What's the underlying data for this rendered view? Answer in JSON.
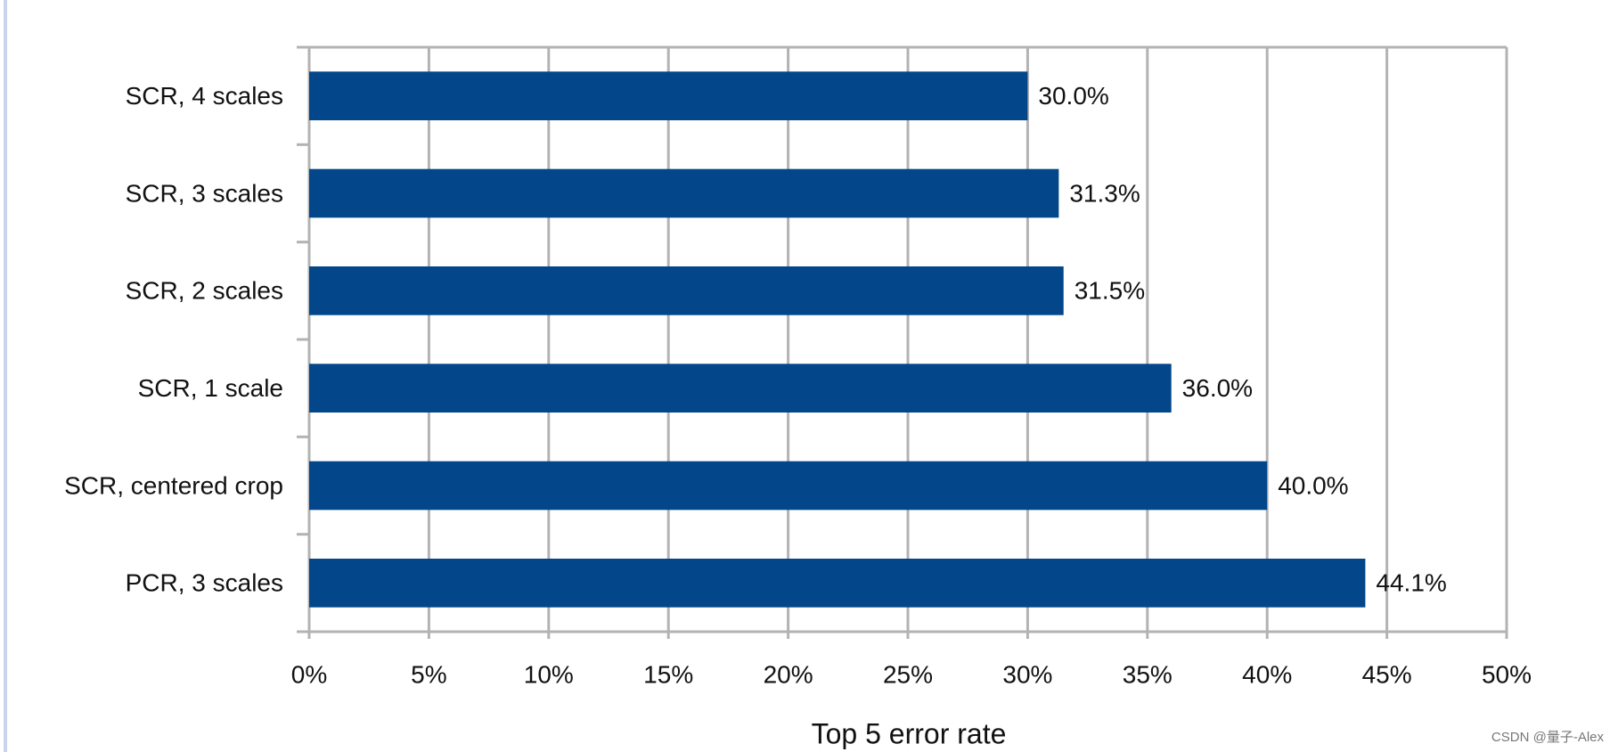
{
  "chart_data": {
    "type": "bar",
    "orientation": "horizontal",
    "categories": [
      "SCR, 4 scales",
      "SCR, 3 scales",
      "SCR, 2 scales",
      "SCR, 1 scale",
      "SCR, centered crop",
      "PCR, 3 scales"
    ],
    "values": [
      30.0,
      31.3,
      31.5,
      36.0,
      40.0,
      44.1
    ],
    "value_labels": [
      "30.0%",
      "31.3%",
      "31.5%",
      "36.0%",
      "40.0%",
      "44.1%"
    ],
    "color": "#03468a",
    "xlabel": "Top 5 error rate",
    "xlim": [
      0,
      50
    ],
    "xticks": [
      {
        "value": 0,
        "label": "0%"
      },
      {
        "value": 5,
        "label": "5%"
      },
      {
        "value": 10,
        "label": "10%"
      },
      {
        "value": 15,
        "label": "15%"
      },
      {
        "value": 20,
        "label": "20%"
      },
      {
        "value": 25,
        "label": "25%"
      },
      {
        "value": 30,
        "label": "30%"
      },
      {
        "value": 35,
        "label": "35%"
      },
      {
        "value": 40,
        "label": "40%"
      },
      {
        "value": 45,
        "label": "45%"
      },
      {
        "value": 50,
        "label": "50%"
      }
    ],
    "grid": true,
    "watermark": "CSDN @量子-Alex"
  }
}
